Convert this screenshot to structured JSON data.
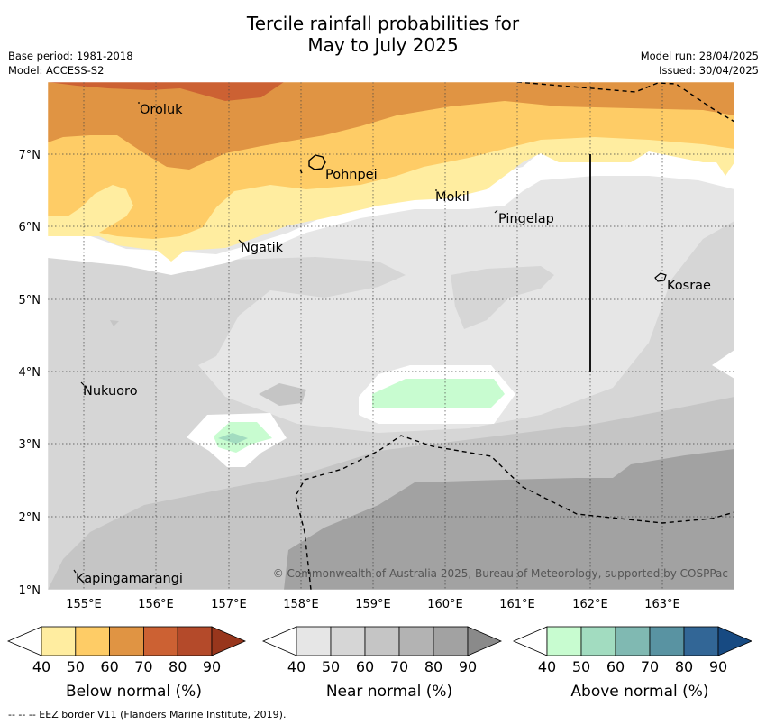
{
  "title_line1": "Tercile rainfall probabilities for",
  "title_line2": "May to July 2025",
  "meta_left": {
    "base_period": "Base period: 1981-2018",
    "model": "Model: ACCESS-S2"
  },
  "meta_right": {
    "model_run": "Model run: 28/04/2025",
    "issued": "Issued: 30/04/2025"
  },
  "places": [
    {
      "name": "Oroluk"
    },
    {
      "name": "Pohnpei"
    },
    {
      "name": "Mokil"
    },
    {
      "name": "Pingelap"
    },
    {
      "name": "Ngatik"
    },
    {
      "name": "Kosrae"
    },
    {
      "name": "Nukuoro"
    },
    {
      "name": "Kapingamarangi"
    }
  ],
  "axes": {
    "lat_ticks": [
      "7°N",
      "6°N",
      "5°N",
      "4°N",
      "3°N",
      "2°N",
      "1°N"
    ],
    "lon_ticks": [
      "155°E",
      "156°E",
      "157°E",
      "158°E",
      "159°E",
      "160°E",
      "161°E",
      "162°E",
      "163°E"
    ],
    "lon_range": [
      154.5,
      164.0
    ],
    "lat_range": [
      1.0,
      8.0
    ]
  },
  "copyright": "© Commonwealth of Australia 2025, Bureau of Meteorology, supported by COSPPac",
  "colorbars": [
    {
      "title": "Below normal (%)",
      "labels": [
        "40",
        "50",
        "60",
        "70",
        "80",
        "90"
      ],
      "colors": [
        "#ffeda0",
        "#fecc66",
        "#e09443",
        "#cc6133",
        "#b44a2a",
        "#98361c"
      ]
    },
    {
      "title": "Near normal (%)",
      "labels": [
        "40",
        "50",
        "60",
        "70",
        "80",
        "90"
      ],
      "colors": [
        "#e6e6e6",
        "#d6d6d6",
        "#c5c5c5",
        "#b3b3b3",
        "#a2a2a2",
        "#8a8a8a"
      ]
    },
    {
      "title": "Above normal (%)",
      "labels": [
        "40",
        "50",
        "60",
        "70",
        "80",
        "90"
      ],
      "colors": [
        "#c8fcd0",
        "#a2dcc0",
        "#80b9b2",
        "#5993a2",
        "#326696",
        "#174a82"
      ]
    }
  ],
  "footer": "--  --  -- EEZ border V11 (Flanders Marine Institute, 2019)."
}
